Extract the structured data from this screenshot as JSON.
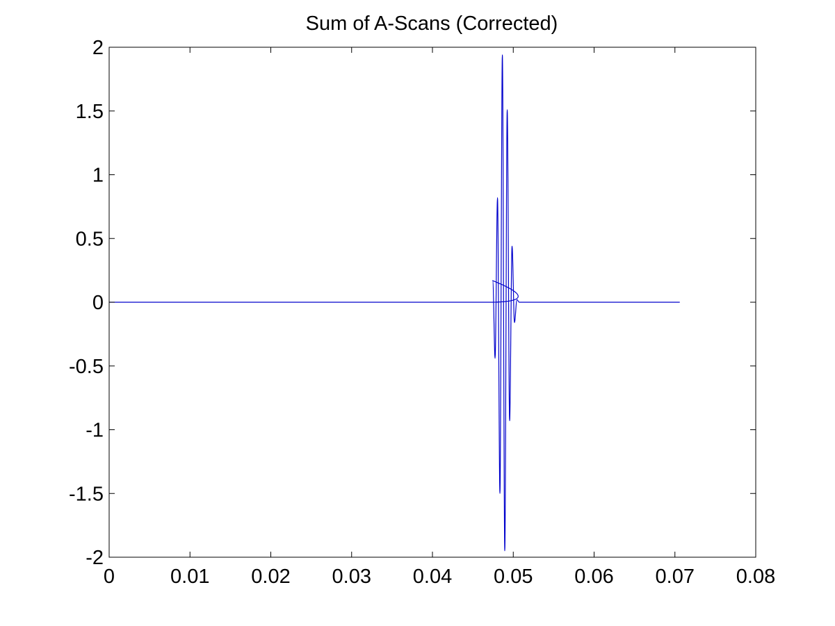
{
  "chart_data": {
    "type": "line",
    "title": "Sum of A-Scans (Corrected)",
    "xlabel": "",
    "ylabel": "",
    "xlim": [
      0,
      0.08
    ],
    "ylim": [
      -2,
      2
    ],
    "x_ticks": [
      0,
      0.01,
      0.02,
      0.03,
      0.04,
      0.05,
      0.06,
      0.07,
      0.08
    ],
    "x_tick_labels": [
      "0",
      "0.01",
      "0.02",
      "0.03",
      "0.04",
      "0.05",
      "0.06",
      "0.07",
      "0.08"
    ],
    "y_ticks": [
      2,
      1.5,
      1,
      0.5,
      0,
      -0.5,
      -1,
      -1.5,
      -2
    ],
    "y_tick_labels": [
      "2",
      "1.5",
      "1",
      "0.5",
      "0",
      "-0.5",
      "-1",
      "-1.5",
      "-2"
    ],
    "grid": false,
    "series": [
      {
        "color": "#0000cc",
        "x": [
          0,
          0.047,
          0.04745,
          0.04775,
          0.04805,
          0.04835,
          0.04865,
          0.04895,
          0.04925,
          0.04955,
          0.04985,
          0.05015,
          0.05045,
          0.05075,
          0.05105,
          0.0706
        ],
        "y": [
          0,
          0,
          0.17,
          -0.44,
          0.82,
          -1.5,
          1.94,
          -1.95,
          1.51,
          -0.93,
          0.44,
          -0.16,
          0.02,
          0,
          0,
          0
        ]
      }
    ]
  }
}
